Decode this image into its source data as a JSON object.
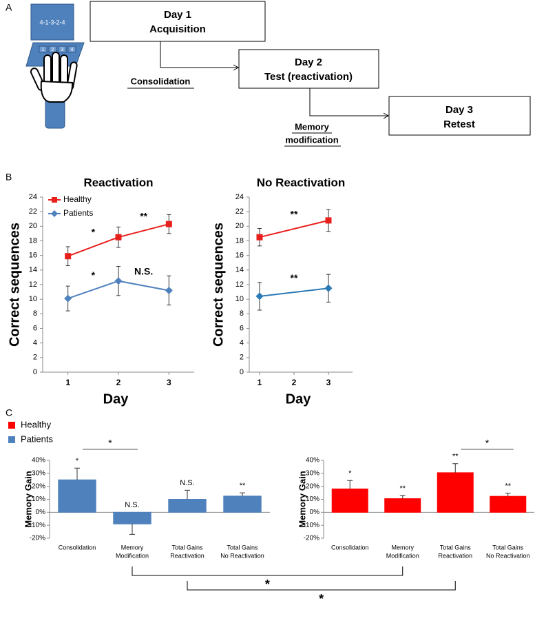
{
  "panel_labels": [
    "A",
    "B",
    "C"
  ],
  "diagram": {
    "screen_text": "4-1-3-2-4",
    "keys": [
      "1",
      "2",
      "3",
      "4"
    ],
    "boxes": [
      [
        "Day 1",
        "Acquisition"
      ],
      [
        "Day 2",
        "Test (reactivation)"
      ],
      [
        "Day 3",
        "Retest"
      ]
    ],
    "arrow_labels": [
      [
        "Consolidation"
      ],
      [
        "Memory",
        "modification"
      ]
    ]
  },
  "chart_data": [
    {
      "type": "line",
      "title": "Reactivation",
      "y_label": "Correct sequences",
      "x_label": "Day",
      "legend": true,
      "x": [
        1,
        2,
        3
      ],
      "xlim": [
        0.5,
        3.5
      ],
      "xticks": [
        1,
        2,
        3
      ],
      "ylim": [
        0,
        24
      ],
      "yticks": [
        0,
        2,
        4,
        6,
        8,
        10,
        12,
        14,
        16,
        18,
        20,
        22,
        24
      ],
      "series": [
        {
          "name": "Healthy",
          "color": "#e8201c",
          "marker": "square",
          "values": [
            15.9,
            18.5,
            20.3
          ],
          "errors": [
            1.3,
            1.4,
            1.3
          ]
        },
        {
          "name": "Patients",
          "color": "#4f81bd",
          "marker": "diamond",
          "values": [
            10.1,
            12.5,
            11.2
          ],
          "errors": [
            1.7,
            2.0,
            2.0
          ]
        }
      ],
      "annotations": [
        {
          "series": 0,
          "between": [
            0,
            1
          ],
          "text": "*"
        },
        {
          "series": 0,
          "between": [
            1,
            2
          ],
          "text": "**"
        },
        {
          "series": 1,
          "between": [
            0,
            1
          ],
          "text": "*"
        },
        {
          "series": 1,
          "between": [
            1,
            2
          ],
          "text": "N.S."
        }
      ]
    },
    {
      "type": "line",
      "title": "No Reactivation",
      "y_label": "Correct sequences",
      "x_label": "Day",
      "legend": false,
      "x": [
        1,
        3
      ],
      "xlim": [
        0.7,
        3.7
      ],
      "xticks": [
        1,
        2,
        3
      ],
      "ylim": [
        0,
        24
      ],
      "yticks": [
        0,
        2,
        4,
        6,
        8,
        10,
        12,
        14,
        16,
        18,
        20,
        22,
        24
      ],
      "series": [
        {
          "color": "#e8201c",
          "marker": "square",
          "values": [
            18.5,
            20.8
          ],
          "errors": [
            1.2,
            1.5
          ]
        },
        {
          "color": "#2a7ab8",
          "marker": "diamond",
          "values": [
            10.4,
            11.5
          ],
          "errors": [
            1.9,
            1.9
          ]
        }
      ],
      "annotations": [
        {
          "series": 0,
          "between": [
            0,
            1
          ],
          "text": "**"
        },
        {
          "series": 1,
          "between": [
            0,
            1
          ],
          "text": "**"
        }
      ]
    },
    {
      "type": "bar",
      "y_label": "Memory Gain",
      "categories": [
        [
          "Consolidation"
        ],
        [
          "Memory",
          "Modification"
        ],
        [
          "Total Gains",
          "Reactivation"
        ],
        [
          "Total Gains",
          "No Reactivation"
        ]
      ],
      "ylim": [
        -20,
        40
      ],
      "yticks": [
        {
          "value": -20,
          "label": "-20%"
        },
        {
          "value": -10,
          "label": "-10%"
        },
        {
          "value": 0,
          "label": "0%"
        },
        {
          "value": 10,
          "label": "10%"
        },
        {
          "value": 20,
          "label": "20%"
        },
        {
          "value": 30,
          "label": "30%"
        },
        {
          "value": 40,
          "label": "40%"
        }
      ],
      "series": [
        {
          "name": "Patients",
          "color": "#4f81bd",
          "values": [
            25,
            -9,
            10,
            12.5
          ],
          "errors": [
            9,
            8,
            7,
            2.5
          ],
          "significance": [
            "*",
            "N.S.",
            "N.S.",
            "**"
          ]
        }
      ],
      "comparisons": [
        {
          "bars": [
            0,
            1
          ],
          "text": "*"
        }
      ]
    },
    {
      "type": "bar",
      "y_label": "Memory Gain",
      "categories": [
        [
          "Consolidation"
        ],
        [
          "Memory",
          "Modification"
        ],
        [
          "Total Gains",
          "Reactivation"
        ],
        [
          "Total Gains",
          "No Reactivation"
        ]
      ],
      "ylim": [
        -20,
        40
      ],
      "yticks": [
        {
          "value": -20,
          "label": "-20%"
        },
        {
          "value": -10,
          "label": "-10%"
        },
        {
          "value": 0,
          "label": "0%"
        },
        {
          "value": 10,
          "label": "10%"
        },
        {
          "value": 20,
          "label": "20%"
        },
        {
          "value": 30,
          "label": "30%"
        },
        {
          "value": 40,
          "label": "40%"
        }
      ],
      "series": [
        {
          "name": "Healthy",
          "color": "#ff0000",
          "values": [
            18,
            10.5,
            30.5,
            12.3
          ],
          "errors": [
            6.5,
            2.5,
            7,
            2.5
          ],
          "significance": [
            "*",
            "**",
            "**",
            "**"
          ]
        }
      ],
      "comparisons": [
        {
          "bars": [
            2,
            3
          ],
          "text": "*"
        }
      ]
    }
  ],
  "cross_comparisons": [
    {
      "charts": [
        2,
        3
      ],
      "bars": [
        1,
        1
      ],
      "text": "*"
    },
    {
      "charts": [
        2,
        3
      ],
      "bars": [
        2,
        2
      ],
      "text": "*"
    }
  ]
}
